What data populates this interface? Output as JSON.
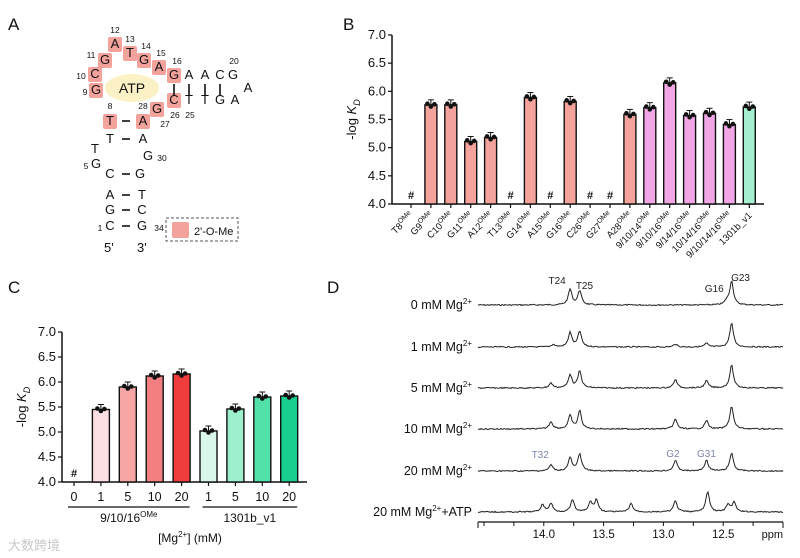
{
  "panels": {
    "a": "A",
    "b": "B",
    "c": "C",
    "d": "D"
  },
  "structure": {
    "ligand": "ATP",
    "legend_label": "2'-O-Me",
    "modified_color": "#f4a29c",
    "ligand_color": "#fbf1c4",
    "end5": "5'",
    "end3": "3'",
    "nucleotides": [
      {
        "base": "C",
        "num": "1",
        "modified": false
      },
      {
        "base": "G",
        "num": "",
        "modified": false
      },
      {
        "base": "A",
        "num": "",
        "modified": false
      },
      {
        "base": "C",
        "num": "",
        "modified": false
      },
      {
        "base": "G",
        "num": "5",
        "modified": false
      },
      {
        "base": "T",
        "num": "",
        "modified": false
      },
      {
        "base": "T",
        "num": "",
        "modified": false
      },
      {
        "base": "T",
        "num": "8",
        "modified": true
      },
      {
        "base": "G",
        "num": "9",
        "modified": true
      },
      {
        "base": "C",
        "num": "10",
        "modified": true
      },
      {
        "base": "G",
        "num": "11",
        "modified": true
      },
      {
        "base": "A",
        "num": "12",
        "modified": true
      },
      {
        "base": "T",
        "num": "13",
        "modified": true
      },
      {
        "base": "G",
        "num": "14",
        "modified": true
      },
      {
        "base": "A",
        "num": "15",
        "modified": true
      },
      {
        "base": "G",
        "num": "16",
        "modified": true
      },
      {
        "base": "A",
        "num": "",
        "modified": false
      },
      {
        "base": "A",
        "num": "",
        "modified": false
      },
      {
        "base": "C",
        "num": "",
        "modified": false
      },
      {
        "base": "G",
        "num": "20",
        "modified": false
      },
      {
        "base": "A",
        "num": "",
        "modified": false
      },
      {
        "base": "A",
        "num": "",
        "modified": false
      },
      {
        "base": "G",
        "num": "",
        "modified": false
      },
      {
        "base": "T",
        "num": "",
        "modified": false
      },
      {
        "base": "T",
        "num": "25",
        "modified": false
      },
      {
        "base": "C",
        "num": "26",
        "modified": true
      },
      {
        "base": "G",
        "num": "27",
        "modified": true
      },
      {
        "base": "A",
        "num": "28",
        "modified": true
      },
      {
        "base": "A",
        "num": "",
        "modified": false
      },
      {
        "base": "G",
        "num": "30",
        "modified": false
      },
      {
        "base": "G",
        "num": "",
        "modified": false
      },
      {
        "base": "T",
        "num": "",
        "modified": false
      },
      {
        "base": "C",
        "num": "",
        "modified": false
      },
      {
        "base": "G",
        "num": "34",
        "modified": false
      }
    ]
  },
  "chart_data": [
    {
      "id": "B",
      "type": "bar",
      "ylabel": "-log K",
      "ylabel_sub": "D",
      "ylim": [
        4.0,
        7.0
      ],
      "yticks": [
        "4.0",
        "4.5",
        "5.0",
        "5.5",
        "6.0",
        "6.5",
        "7.0"
      ],
      "not_determined_mark": "#",
      "superscript": "OMe",
      "categories": [
        {
          "label": "T8",
          "sup": true
        },
        {
          "label": "G9",
          "sup": true
        },
        {
          "label": "C10",
          "sup": true
        },
        {
          "label": "G11",
          "sup": true
        },
        {
          "label": "A12",
          "sup": true
        },
        {
          "label": "T13",
          "sup": true
        },
        {
          "label": "G14",
          "sup": true
        },
        {
          "label": "A15",
          "sup": true
        },
        {
          "label": "G16",
          "sup": true
        },
        {
          "label": "C26",
          "sup": true
        },
        {
          "label": "G27",
          "sup": true
        },
        {
          "label": "A28",
          "sup": true
        },
        {
          "label": "9/10/14",
          "sup": true
        },
        {
          "label": "9/10/16",
          "sup": true
        },
        {
          "label": "9/14/16",
          "sup": true
        },
        {
          "label": "10/14/16",
          "sup": true
        },
        {
          "label": "9/10/14/16",
          "sup": true
        },
        {
          "label": "1301b_v1",
          "sup": false
        }
      ],
      "values": [
        null,
        5.76,
        5.76,
        5.11,
        5.18,
        null,
        5.89,
        null,
        5.82,
        null,
        null,
        5.59,
        5.71,
        6.15,
        5.57,
        5.61,
        5.41,
        5.72
      ],
      "colors": [
        "#f4a29c",
        "#f4a29c",
        "#f4a29c",
        "#f4a29c",
        "#f4a29c",
        "#f4a29c",
        "#f4a29c",
        "#f4a29c",
        "#f4a29c",
        "#f4a29c",
        "#f4a29c",
        "#f4a29c",
        "#f2a6e6",
        "#f2a6e6",
        "#f2a6e6",
        "#f2a6e6",
        "#f2a6e6",
        "#a6f0d2"
      ]
    },
    {
      "id": "C",
      "type": "bar",
      "ylabel": "-log K",
      "ylabel_sub": "D",
      "ylim": [
        4.0,
        7.0
      ],
      "yticks": [
        "4.0",
        "4.5",
        "5.0",
        "5.5",
        "6.0",
        "6.5",
        "7.0"
      ],
      "xlabel": "[Mg2+] (mM)",
      "xlabel_parts": {
        "pre": "[Mg",
        "sup": "2+",
        "post": "] (mM)"
      },
      "not_determined_mark": "#",
      "categories": [
        "0",
        "1",
        "5",
        "10",
        "20",
        "1",
        "5",
        "10",
        "20"
      ],
      "groups": [
        {
          "label": "9/10/16",
          "sup": "OMe",
          "from": 0,
          "to": 4
        },
        {
          "label": "1301b_v1",
          "sup": "",
          "from": 5,
          "to": 8
        }
      ],
      "values": [
        null,
        5.45,
        5.9,
        6.12,
        6.16,
        5.02,
        5.46,
        5.7,
        5.72
      ],
      "colors": [
        "#fde0e4",
        "#fde0e4",
        "#f7a6a6",
        "#f47f80",
        "#ef3d3d",
        "#d9f8ea",
        "#9cf0cd",
        "#52e2a9",
        "#19cf8e"
      ]
    },
    {
      "id": "D",
      "type": "line",
      "xlabel": "ppm",
      "xlim": [
        14.55,
        12.0
      ],
      "xticks": [
        "14.0",
        "13.5",
        "13.0",
        "12.5"
      ],
      "series": [
        {
          "name": "0 mM Mg",
          "sup": "2+",
          "suffix": "",
          "peaks": [
            [
              13.78,
              0.65
            ],
            [
              13.7,
              0.6
            ],
            [
              12.47,
              0.15
            ],
            [
              12.43,
              1.0
            ]
          ]
        },
        {
          "name": "1 mM Mg",
          "sup": "2+",
          "suffix": "",
          "peaks": [
            [
              13.92,
              0.1
            ],
            [
              13.78,
              0.6
            ],
            [
              13.7,
              0.65
            ],
            [
              12.9,
              0.12
            ],
            [
              12.64,
              0.15
            ],
            [
              12.43,
              1.0
            ]
          ]
        },
        {
          "name": "5 mM Mg",
          "sup": "2+",
          "suffix": "",
          "peaks": [
            [
              13.94,
              0.2
            ],
            [
              13.78,
              0.55
            ],
            [
              13.7,
              0.7
            ],
            [
              12.9,
              0.35
            ],
            [
              12.64,
              0.3
            ],
            [
              12.43,
              0.95
            ]
          ]
        },
        {
          "name": "10 mM Mg",
          "sup": "2+",
          "suffix": "",
          "peaks": [
            [
              13.94,
              0.3
            ],
            [
              13.78,
              0.55
            ],
            [
              13.7,
              0.75
            ],
            [
              12.9,
              0.4
            ],
            [
              12.64,
              0.35
            ],
            [
              12.43,
              0.95
            ]
          ]
        },
        {
          "name": "20 mM Mg",
          "sup": "2+",
          "suffix": "",
          "peaks": [
            [
              13.94,
              0.25
            ],
            [
              13.78,
              0.55
            ],
            [
              13.7,
              0.72
            ],
            [
              12.9,
              0.45
            ],
            [
              12.64,
              0.45
            ],
            [
              12.43,
              0.75
            ]
          ]
        },
        {
          "name": "20 mM Mg",
          "sup": "2+",
          "suffix": "+ATP",
          "peaks": [
            [
              14.01,
              0.3
            ],
            [
              13.94,
              0.35
            ],
            [
              13.76,
              0.5
            ],
            [
              13.61,
              0.4
            ],
            [
              13.56,
              0.5
            ],
            [
              13.27,
              0.35
            ],
            [
              12.9,
              0.45
            ],
            [
              12.63,
              0.85
            ],
            [
              12.46,
              0.3
            ],
            [
              12.41,
              0.4
            ]
          ]
        }
      ],
      "annotations": [
        {
          "text": "T24",
          "ppm": 13.78,
          "trace": 0,
          "color": "#222222"
        },
        {
          "text": "T25",
          "ppm": 13.66,
          "trace": 0,
          "color": "#222222"
        },
        {
          "text": "G16",
          "ppm": 12.55,
          "trace": 0,
          "color": "#222222"
        },
        {
          "text": "G23",
          "ppm": 12.38,
          "trace": 0,
          "color": "#222222"
        },
        {
          "text": "T32",
          "ppm": 14.03,
          "trace": 4,
          "color": "#7a86ad"
        },
        {
          "text": "G2",
          "ppm": 12.92,
          "trace": 4,
          "color": "#7a86ad"
        },
        {
          "text": "G31",
          "ppm": 12.64,
          "trace": 4,
          "color": "#7a86ad"
        }
      ]
    }
  ],
  "watermark": "大数跨境"
}
